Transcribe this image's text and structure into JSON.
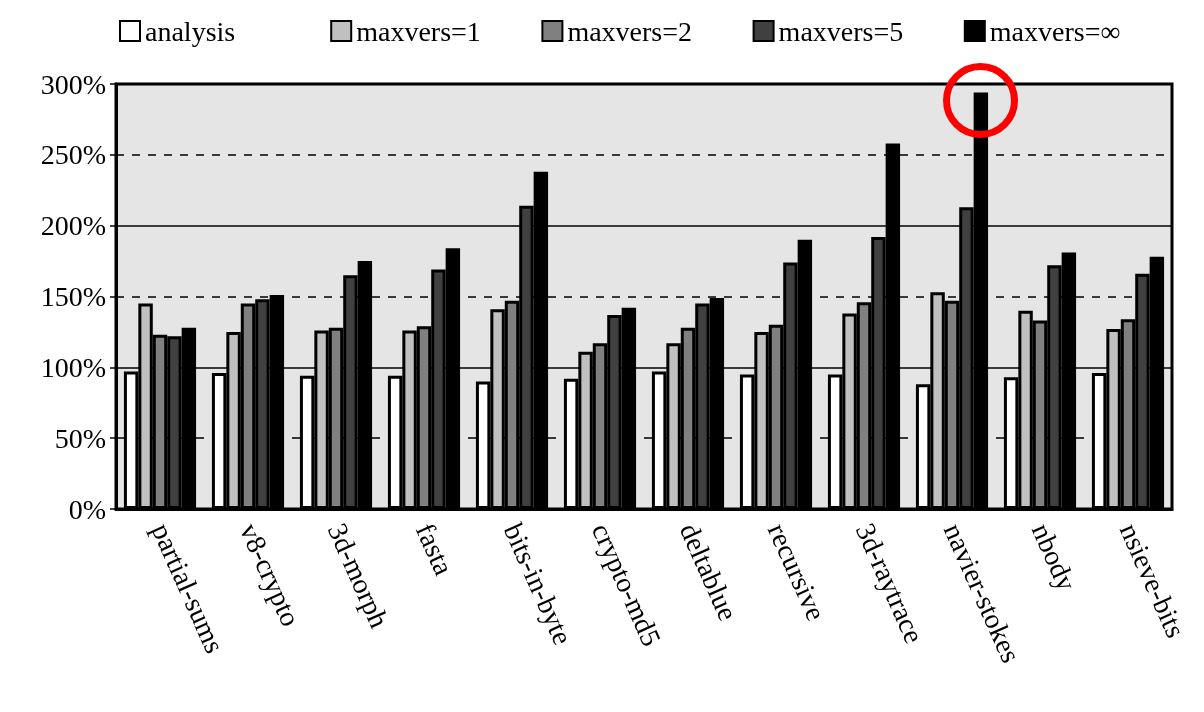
{
  "chart_data": {
    "type": "bar",
    "categories": [
      "partial-sums",
      "v8-crypto",
      "3d-morph",
      "fasta",
      "bits-in-byte",
      "crypto-md5",
      "deltablue",
      "recursive",
      "3d-raytrace",
      "navier-stokes",
      "nbody",
      "nsieve-bits"
    ],
    "series": [
      {
        "name": "analysis",
        "color": "#ffffff",
        "values": [
          97,
          96,
          94,
          94,
          90,
          92,
          97,
          95,
          95,
          88,
          93,
          96
        ]
      },
      {
        "name": "maxvers=1",
        "color": "#c0c0c0",
        "values": [
          145,
          125,
          126,
          126,
          141,
          111,
          117,
          125,
          138,
          153,
          140,
          127
        ]
      },
      {
        "name": "maxvers=2",
        "color": "#808080",
        "values": [
          123,
          145,
          128,
          129,
          147,
          117,
          128,
          130,
          146,
          147,
          133,
          134
        ]
      },
      {
        "name": "maxvers=5",
        "color": "#404040",
        "values": [
          122,
          148,
          165,
          169,
          214,
          137,
          145,
          174,
          192,
          213,
          172,
          166
        ]
      },
      {
        "name": "maxvers=∞",
        "color": "#000000",
        "values": [
          128,
          151,
          175,
          184,
          238,
          142,
          149,
          190,
          258,
          294,
          181,
          178
        ]
      }
    ],
    "ylim": [
      0,
      300
    ],
    "yticks": [
      {
        "value": 0,
        "label": "0%"
      },
      {
        "value": 50,
        "label": "50%"
      },
      {
        "value": 100,
        "label": "100%"
      },
      {
        "value": 150,
        "label": "150%"
      },
      {
        "value": 200,
        "label": "200%"
      },
      {
        "value": 250,
        "label": "250%"
      },
      {
        "value": 300,
        "label": "300%"
      }
    ],
    "grid": "y",
    "legend": "top"
  }
}
